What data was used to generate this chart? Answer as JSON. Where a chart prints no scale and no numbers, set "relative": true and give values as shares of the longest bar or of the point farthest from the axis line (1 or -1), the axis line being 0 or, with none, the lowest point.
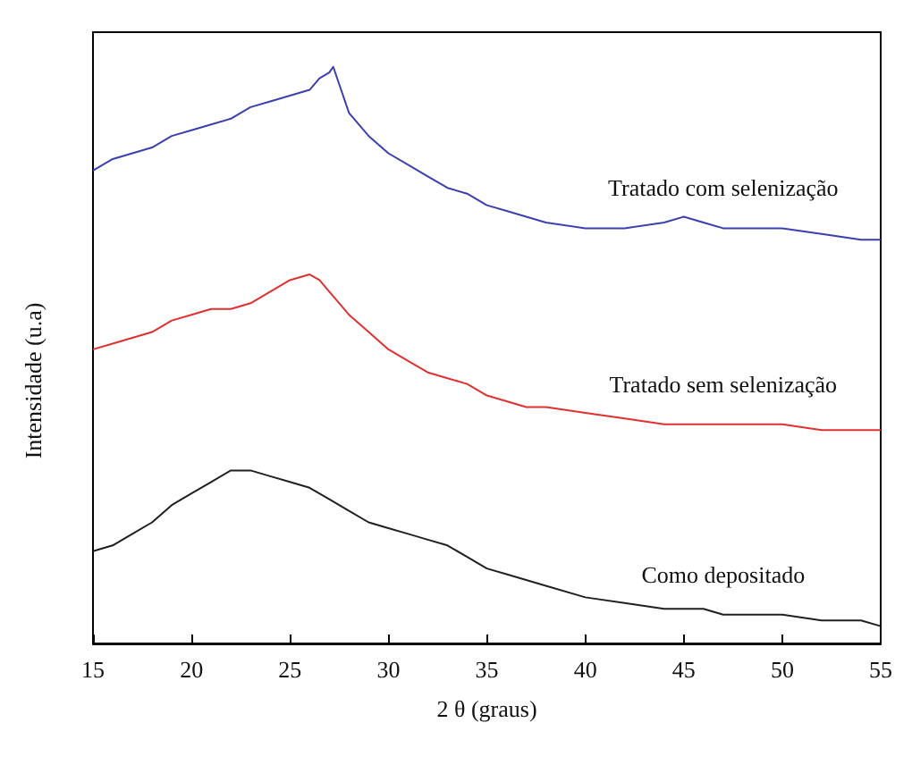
{
  "chart_data": {
    "type": "line",
    "relative": true,
    "xlabel": "2 θ (graus)",
    "ylabel": "Intensidade (u.a)",
    "xlim": [
      15,
      55
    ],
    "xticks": [
      15,
      20,
      25,
      30,
      35,
      40,
      45,
      50,
      55
    ],
    "grid": false,
    "legend": false,
    "marker": "none",
    "line_style": "solid",
    "series": [
      {
        "name": "Tratado com selenização",
        "color": "#3b3fb0",
        "x": [
          15,
          16,
          17,
          18,
          19,
          20,
          21,
          22,
          23,
          24,
          25,
          26,
          26.5,
          27,
          27.2,
          27.6,
          28,
          29,
          30,
          31,
          32,
          33,
          34,
          35,
          36,
          38,
          40,
          42,
          44,
          45,
          46,
          47,
          48,
          50,
          52,
          54,
          55
        ],
        "values": [
          0.82,
          0.84,
          0.85,
          0.86,
          0.88,
          0.89,
          0.9,
          0.91,
          0.93,
          0.94,
          0.95,
          0.96,
          0.98,
          0.99,
          1,
          0.96,
          0.92,
          0.88,
          0.85,
          0.83,
          0.81,
          0.79,
          0.78,
          0.76,
          0.75,
          0.73,
          0.72,
          0.72,
          0.73,
          0.74,
          0.73,
          0.72,
          0.72,
          0.72,
          0.71,
          0.7,
          0.7
        ]
      },
      {
        "name": "Tratado sem selenização",
        "color": "#e03030",
        "x": [
          15,
          16,
          17,
          18,
          19,
          20,
          21,
          22,
          23,
          24,
          25,
          26,
          26.5,
          27,
          28,
          29,
          30,
          31,
          32,
          33,
          34,
          35,
          36,
          37,
          38,
          40,
          42,
          44,
          45,
          46,
          47,
          48,
          50,
          52,
          54,
          55
        ],
        "values": [
          0.51,
          0.52,
          0.53,
          0.54,
          0.56,
          0.57,
          0.58,
          0.58,
          0.59,
          0.61,
          0.63,
          0.64,
          0.63,
          0.61,
          0.57,
          0.54,
          0.51,
          0.49,
          0.47,
          0.46,
          0.45,
          0.43,
          0.42,
          0.41,
          0.41,
          0.4,
          0.39,
          0.38,
          0.38,
          0.38,
          0.38,
          0.38,
          0.38,
          0.37,
          0.37,
          0.37
        ]
      },
      {
        "name": "Como depositado",
        "color": "#202020",
        "x": [
          15,
          16,
          17,
          18,
          19,
          20,
          21,
          22,
          23,
          24,
          25,
          26,
          27,
          28,
          29,
          30,
          31,
          32,
          33,
          34,
          35,
          36,
          37,
          38,
          40,
          42,
          44,
          45,
          46,
          47,
          48,
          50,
          52,
          54,
          55
        ],
        "values": [
          0.16,
          0.17,
          0.19,
          0.21,
          0.24,
          0.26,
          0.28,
          0.3,
          0.3,
          0.29,
          0.28,
          0.27,
          0.25,
          0.23,
          0.21,
          0.2,
          0.19,
          0.18,
          0.17,
          0.15,
          0.13,
          0.12,
          0.11,
          0.1,
          0.08,
          0.07,
          0.06,
          0.06,
          0.06,
          0.05,
          0.05,
          0.05,
          0.04,
          0.04,
          0.03
        ]
      }
    ]
  }
}
